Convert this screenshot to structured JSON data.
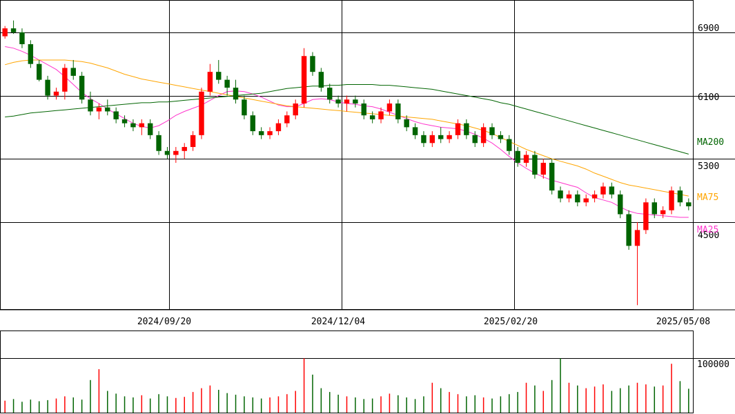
{
  "chart_data": {
    "type": "candlestick",
    "price_axis": {
      "ylim": [
        3400,
        7300
      ],
      "ticks": [
        4500,
        5300,
        6100,
        6900
      ],
      "tick_labels": [
        "4500",
        "5300",
        "6100",
        "6900"
      ]
    },
    "date_axis": {
      "tick_labels": [
        "2024/09/20",
        "2024/12/04",
        "2025/02/20",
        "2025/05/08"
      ]
    },
    "volume_axis": {
      "ylim": [
        0,
        150000
      ],
      "ticks": [
        100000
      ],
      "tick_labels": [
        "100000"
      ]
    },
    "grid": true,
    "colors": {
      "up": "#ff0000",
      "down": "#006400",
      "ma25": "#ff33cc",
      "ma75": "#ffa500",
      "ma200": "#006400",
      "grid": "#000000"
    },
    "moving_averages": [
      {
        "label": "MA25",
        "color": "#ff33cc",
        "values": [
          6720,
          6700,
          6660,
          6610,
          6550,
          6490,
          6430,
          6340,
          6240,
          6140,
          6060,
          6000,
          5930,
          5870,
          5810,
          5750,
          5710,
          5690,
          5720,
          5780,
          5850,
          5900,
          5940,
          5980,
          6040,
          6100,
          6150,
          6160,
          6150,
          6120,
          6080,
          6030,
          5980,
          5960,
          5960,
          6000,
          6050,
          6060,
          6050,
          6020,
          6000,
          5990,
          5970,
          5960,
          5930,
          5890,
          5850,
          5810,
          5770,
          5740,
          5720,
          5700,
          5690,
          5680,
          5650,
          5610,
          5560,
          5500,
          5420,
          5330,
          5250,
          5180,
          5120,
          5070,
          5030,
          5000,
          4970,
          4940,
          4870,
          4810,
          4780,
          4750,
          4690,
          4640,
          4610,
          4600,
          4590,
          4580,
          4570,
          4560,
          4560
        ]
      },
      {
        "label": "MA75",
        "color": "#ffa500",
        "values": [
          6490,
          6520,
          6540,
          6550,
          6550,
          6550,
          6550,
          6550,
          6540,
          6530,
          6510,
          6480,
          6450,
          6410,
          6370,
          6340,
          6310,
          6290,
          6270,
          6250,
          6230,
          6210,
          6190,
          6170,
          6150,
          6130,
          6110,
          6090,
          6070,
          6050,
          6030,
          6010,
          5990,
          5970,
          5960,
          5950,
          5940,
          5930,
          5920,
          5910,
          5900,
          5890,
          5880,
          5870,
          5860,
          5850,
          5840,
          5830,
          5820,
          5810,
          5800,
          5780,
          5760,
          5740,
          5720,
          5690,
          5660,
          5620,
          5570,
          5520,
          5470,
          5420,
          5380,
          5340,
          5300,
          5270,
          5240,
          5210,
          5170,
          5120,
          5080,
          5040,
          5000,
          4970,
          4950,
          4930,
          4910,
          4890,
          4870,
          4850,
          4830
        ]
      },
      {
        "label": "MA200",
        "color": "#006400",
        "values": [
          5830,
          5840,
          5860,
          5880,
          5890,
          5900,
          5910,
          5920,
          5930,
          5940,
          5950,
          5960,
          5970,
          5980,
          5990,
          6000,
          6010,
          6010,
          6020,
          6020,
          6030,
          6040,
          6050,
          6060,
          6070,
          6080,
          6090,
          6100,
          6110,
          6120,
          6130,
          6150,
          6170,
          6190,
          6200,
          6210,
          6220,
          6220,
          6230,
          6230,
          6240,
          6240,
          6240,
          6240,
          6230,
          6230,
          6220,
          6210,
          6200,
          6190,
          6180,
          6160,
          6140,
          6120,
          6100,
          6080,
          6060,
          6040,
          6010,
          5990,
          5960,
          5930,
          5900,
          5870,
          5840,
          5810,
          5780,
          5750,
          5720,
          5690,
          5660,
          5630,
          5600,
          5570,
          5540,
          5510,
          5480,
          5450,
          5420,
          5390,
          5360
        ]
      }
    ],
    "ohlc": [
      [
        6850,
        6980,
        6820,
        6950
      ],
      [
        6950,
        7050,
        6880,
        6900
      ],
      [
        6900,
        6950,
        6700,
        6750
      ],
      [
        6750,
        6800,
        6450,
        6500
      ],
      [
        6500,
        6550,
        6280,
        6300
      ],
      [
        6300,
        6350,
        6050,
        6100
      ],
      [
        6100,
        6200,
        6050,
        6150
      ],
      [
        6150,
        6500,
        6050,
        6450
      ],
      [
        6450,
        6550,
        6300,
        6350
      ],
      [
        6350,
        6400,
        6000,
        6050
      ],
      [
        6050,
        6150,
        5850,
        5900
      ],
      [
        5900,
        6000,
        5800,
        5950
      ],
      [
        5950,
        6050,
        5850,
        5900
      ],
      [
        5900,
        5950,
        5750,
        5800
      ],
      [
        5800,
        5850,
        5700,
        5750
      ],
      [
        5750,
        5800,
        5650,
        5700
      ],
      [
        5700,
        5800,
        5600,
        5750
      ],
      [
        5750,
        5800,
        5550,
        5600
      ],
      [
        5600,
        5650,
        5350,
        5400
      ],
      [
        5400,
        5450,
        5300,
        5350
      ],
      [
        5350,
        5450,
        5250,
        5400
      ],
      [
        5400,
        5500,
        5300,
        5450
      ],
      [
        5450,
        5650,
        5400,
        5600
      ],
      [
        5600,
        6200,
        5550,
        6150
      ],
      [
        6150,
        6500,
        6100,
        6400
      ],
      [
        6400,
        6550,
        6250,
        6300
      ],
      [
        6300,
        6350,
        6100,
        6200
      ],
      [
        6200,
        6300,
        6000,
        6050
      ],
      [
        6050,
        6100,
        5800,
        5850
      ],
      [
        5850,
        5900,
        5600,
        5650
      ],
      [
        5650,
        5700,
        5550,
        5600
      ],
      [
        5600,
        5700,
        5550,
        5650
      ],
      [
        5650,
        5800,
        5600,
        5750
      ],
      [
        5750,
        5900,
        5700,
        5850
      ],
      [
        5850,
        6050,
        5800,
        6000
      ],
      [
        6000,
        6700,
        5950,
        6600
      ],
      [
        6600,
        6650,
        6350,
        6400
      ],
      [
        6400,
        6450,
        6150,
        6200
      ],
      [
        6200,
        6250,
        6000,
        6050
      ],
      [
        6050,
        6100,
        5950,
        6000
      ],
      [
        6000,
        6100,
        5900,
        6050
      ],
      [
        6050,
        6100,
        5950,
        6000
      ],
      [
        6000,
        6050,
        5800,
        5850
      ],
      [
        5850,
        5900,
        5750,
        5800
      ],
      [
        5800,
        5950,
        5750,
        5900
      ],
      [
        5900,
        6050,
        5850,
        6000
      ],
      [
        6000,
        6050,
        5750,
        5800
      ],
      [
        5800,
        5850,
        5650,
        5700
      ],
      [
        5700,
        5750,
        5550,
        5600
      ],
      [
        5600,
        5650,
        5450,
        5500
      ],
      [
        5500,
        5650,
        5450,
        5600
      ],
      [
        5600,
        5700,
        5500,
        5550
      ],
      [
        5550,
        5650,
        5500,
        5600
      ],
      [
        5600,
        5800,
        5550,
        5750
      ],
      [
        5750,
        5800,
        5550,
        5600
      ],
      [
        5600,
        5650,
        5450,
        5500
      ],
      [
        5500,
        5750,
        5450,
        5700
      ],
      [
        5700,
        5750,
        5550,
        5600
      ],
      [
        5600,
        5650,
        5500,
        5550
      ],
      [
        5550,
        5600,
        5350,
        5400
      ],
      [
        5400,
        5450,
        5200,
        5250
      ],
      [
        5250,
        5400,
        5200,
        5350
      ],
      [
        5350,
        5400,
        5050,
        5100
      ],
      [
        5100,
        5300,
        5050,
        5250
      ],
      [
        5250,
        5300,
        4850,
        4900
      ],
      [
        4900,
        4950,
        4750,
        4800
      ],
      [
        4800,
        4900,
        4750,
        4850
      ],
      [
        4850,
        4900,
        4700,
        4750
      ],
      [
        4750,
        4850,
        4700,
        4800
      ],
      [
        4800,
        4900,
        4750,
        4850
      ],
      [
        4850,
        5000,
        4800,
        4950
      ],
      [
        4950,
        5000,
        4800,
        4850
      ],
      [
        4850,
        4900,
        4550,
        4600
      ],
      [
        4600,
        4650,
        4150,
        4200
      ],
      [
        4200,
        4500,
        3450,
        4400
      ],
      [
        4400,
        4800,
        4350,
        4750
      ],
      [
        4750,
        4800,
        4550,
        4600
      ],
      [
        4600,
        4700,
        4550,
        4650
      ],
      [
        4650,
        4950,
        4600,
        4900
      ],
      [
        4900,
        4950,
        4700,
        4750
      ],
      [
        4750,
        4800,
        4650,
        4700
      ]
    ],
    "volume": [
      22000,
      25000,
      20000,
      24000,
      21000,
      23000,
      26000,
      30000,
      28000,
      24000,
      60000,
      80000,
      40000,
      35000,
      30000,
      28000,
      32000,
      26000,
      34000,
      30000,
      27000,
      29000,
      38000,
      45000,
      50000,
      42000,
      36000,
      33000,
      30000,
      28000,
      26000,
      28000,
      30000,
      34000,
      40000,
      100000,
      70000,
      45000,
      38000,
      33000,
      30000,
      28000,
      25000,
      26000,
      30000,
      35000,
      32000,
      28000,
      25000,
      30000,
      55000,
      45000,
      38000,
      34000,
      30000,
      32000,
      28000,
      26000,
      30000,
      34000,
      38000,
      55000,
      50000,
      40000,
      60000,
      100000,
      55000,
      50000,
      45000,
      48000,
      52000,
      40000,
      45000,
      50000,
      55000,
      52000,
      48000,
      50000,
      90000,
      58000,
      44000
    ]
  }
}
